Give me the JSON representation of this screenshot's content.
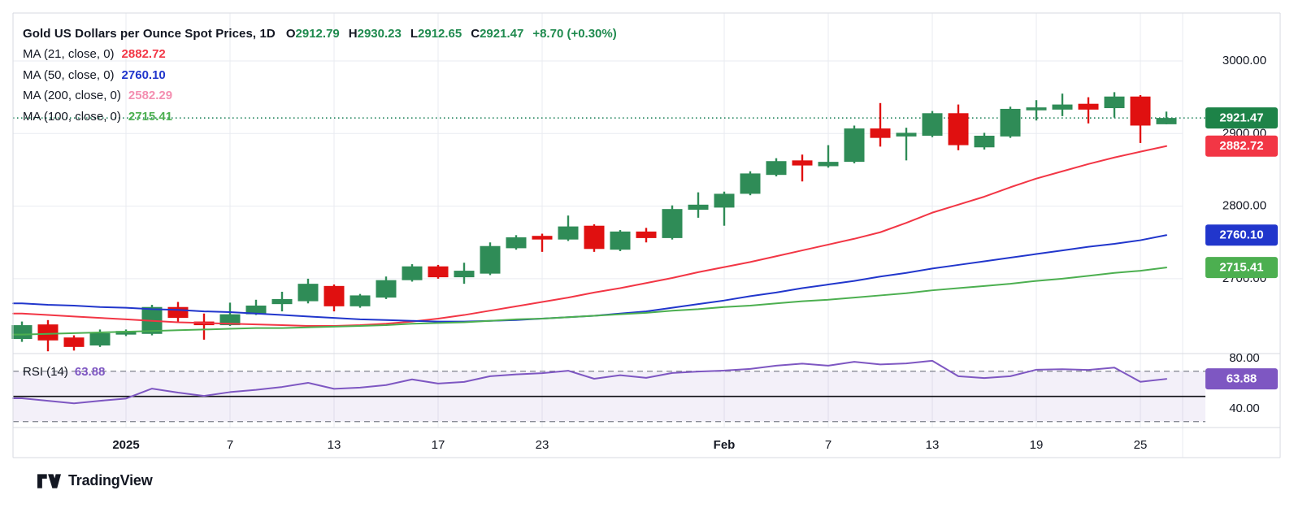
{
  "header": {
    "title": "Gold US Dollars per Ounce Spot Prices, 1D",
    "ohlc": [
      {
        "label": "O",
        "value": "2912.79"
      },
      {
        "label": "H",
        "value": "2930.23"
      },
      {
        "label": "L",
        "value": "2912.65"
      },
      {
        "label": "C",
        "value": "2921.47"
      }
    ],
    "change": "+8.70 (+0.30%)",
    "ohlc_value_color": "#1f8a4e"
  },
  "legend": {
    "ma": [
      {
        "label": "MA (21, close, 0)",
        "value": "2882.72",
        "color": "#f23645"
      },
      {
        "label": "MA (50, close, 0)",
        "value": "2760.10",
        "color": "#2136cc"
      },
      {
        "label": "MA (200, close, 0)",
        "value": "2582.29",
        "color": "#f48fb1"
      },
      {
        "label": "MA (100, close, 0)",
        "value": "2715.41",
        "color": "#4caf50"
      }
    ]
  },
  "rsi_label": {
    "label": "RSI (14)",
    "value": "63.88",
    "color": "#7e57c2"
  },
  "footer": {
    "brand": "TradingView"
  },
  "chart_data": {
    "type": "candlestick",
    "symbol": "Gold US Dollars per Ounce Spot Prices",
    "interval": "1D",
    "ohlc_current": {
      "open": 2912.79,
      "high": 2930.23,
      "low": 2912.65,
      "close": 2921.47,
      "change": "+8.70",
      "change_pct": "+0.30%"
    },
    "colors": {
      "up": "#2f8c57",
      "down": "#e01010",
      "close_badge": "#1d8348",
      "dotted_close": "#0d7a4d",
      "ma21": "#f23645",
      "ma50": "#2136cc",
      "ma100": "#4caf50",
      "rsi": "#7e57c2",
      "rsi_band_fill": "rgba(126,87,194,0.09)",
      "band_dash": "#8a8d97",
      "rsi_midline": "#0c0d12",
      "grid": "#e9ebf1",
      "border": "#d7dae0",
      "axis_text": "#131722"
    },
    "price_axis": {
      "gridline_values": [
        3000,
        2900,
        2800,
        2700
      ],
      "ticks": [
        {
          "text": "3000.00",
          "value": 3000
        },
        {
          "text": "2900.00",
          "value": 2900
        },
        {
          "text": "2800.00",
          "value": 2800
        },
        {
          "text": "2700.00",
          "value": 2700
        }
      ],
      "badges": [
        {
          "text": "2921.47",
          "value": 2921.47,
          "color": "#1d8348"
        },
        {
          "text": "2882.72",
          "value": 2882.72,
          "color": "#f23645"
        },
        {
          "text": "2760.10",
          "value": 2760.1,
          "color": "#2136cc"
        },
        {
          "text": "2715.41",
          "value": 2715.41,
          "color": "#4caf50"
        }
      ]
    },
    "rsi_axis": {
      "ticks": [
        {
          "text": "80.00",
          "value": 80
        },
        {
          "text": "40.00",
          "value": 40
        }
      ],
      "badge": {
        "text": "63.88",
        "value": 63.88,
        "color": "#7e57c2"
      },
      "bands": [
        70,
        30
      ],
      "midline": 50
    },
    "time_axis": {
      "ticks": [
        {
          "i": 4,
          "label": "2025",
          "bold": true
        },
        {
          "i": 8,
          "label": "7"
        },
        {
          "i": 12,
          "label": "13"
        },
        {
          "i": 16,
          "label": "17"
        },
        {
          "i": 20,
          "label": "23"
        },
        {
          "i": 27,
          "label": "Feb",
          "bold": true
        },
        {
          "i": 31,
          "label": "7"
        },
        {
          "i": 35,
          "label": "13"
        },
        {
          "i": 39,
          "label": "19"
        },
        {
          "i": 43,
          "label": "25"
        }
      ]
    },
    "candles": [
      [
        2617,
        2641,
        2613,
        2636
      ],
      [
        2637,
        2643,
        2600,
        2615
      ],
      [
        2619,
        2622,
        2601,
        2606
      ],
      [
        2608,
        2630,
        2606,
        2625
      ],
      [
        2623,
        2630,
        2621,
        2628
      ],
      [
        2624,
        2664,
        2622,
        2661
      ],
      [
        2661,
        2668,
        2640,
        2646
      ],
      [
        2641,
        2652,
        2616,
        2636
      ],
      [
        2636,
        2667,
        2635,
        2651
      ],
      [
        2651,
        2671,
        2650,
        2663
      ],
      [
        2665,
        2682,
        2655,
        2672
      ],
      [
        2669,
        2700,
        2666,
        2693
      ],
      [
        2690,
        2692,
        2655,
        2662
      ],
      [
        2662,
        2679,
        2660,
        2677
      ],
      [
        2674,
        2703,
        2672,
        2698
      ],
      [
        2698,
        2720,
        2696,
        2717
      ],
      [
        2717,
        2719,
        2700,
        2702
      ],
      [
        2702,
        2722,
        2693,
        2711
      ],
      [
        2707,
        2750,
        2705,
        2745
      ],
      [
        2742,
        2760,
        2740,
        2757
      ],
      [
        2759,
        2762,
        2737,
        2754
      ],
      [
        2754,
        2787,
        2752,
        2772
      ],
      [
        2773,
        2775,
        2737,
        2741
      ],
      [
        2740,
        2767,
        2738,
        2765
      ],
      [
        2765,
        2770,
        2750,
        2756
      ],
      [
        2756,
        2801,
        2754,
        2796
      ],
      [
        2795,
        2819,
        2784,
        2802
      ],
      [
        2798,
        2820,
        2773,
        2817
      ],
      [
        2817,
        2848,
        2815,
        2845
      ],
      [
        2843,
        2866,
        2841,
        2862
      ],
      [
        2863,
        2871,
        2834,
        2856
      ],
      [
        2855,
        2884,
        2853,
        2861
      ],
      [
        2861,
        2911,
        2859,
        2907
      ],
      [
        2907,
        2942,
        2882,
        2894
      ],
      [
        2896,
        2908,
        2863,
        2901
      ],
      [
        2897,
        2931,
        2895,
        2928
      ],
      [
        2928,
        2940,
        2877,
        2884
      ],
      [
        2881,
        2901,
        2878,
        2897
      ],
      [
        2896,
        2937,
        2894,
        2934
      ],
      [
        2932,
        2946,
        2918,
        2936
      ],
      [
        2933,
        2955,
        2924,
        2940
      ],
      [
        2941,
        2950,
        2914,
        2933
      ],
      [
        2935,
        2957,
        2922,
        2951
      ],
      [
        2951,
        2953,
        2887,
        2911
      ],
      [
        2912.79,
        2930.23,
        2912.65,
        2921.47
      ]
    ],
    "series": [
      {
        "name": "MA (21, close, 0)",
        "period": 21,
        "color": "#f23645",
        "last": 2882.72,
        "plotted": true,
        "values": [
          2652,
          2650,
          2648,
          2646,
          2644,
          2642,
          2640,
          2639,
          2638,
          2637,
          2636,
          2635,
          2635,
          2636,
          2638,
          2641,
          2645,
          2650,
          2656,
          2662,
          2668,
          2674,
          2681,
          2687,
          2694,
          2701,
          2709,
          2716,
          2723,
          2731,
          2739,
          2747,
          2755,
          2764,
          2777,
          2791,
          2802,
          2813,
          2826,
          2838,
          2848,
          2858,
          2867,
          2875,
          2882.72
        ]
      },
      {
        "name": "MA (50, close, 0)",
        "period": 50,
        "color": "#2136cc",
        "last": 2760.1,
        "plotted": true,
        "values": [
          2666,
          2664,
          2663,
          2661,
          2660,
          2658,
          2657,
          2655,
          2654,
          2652,
          2650,
          2648,
          2646,
          2644,
          2643,
          2642,
          2641,
          2641,
          2642,
          2643,
          2645,
          2647,
          2649,
          2652,
          2655,
          2660,
          2665,
          2670,
          2676,
          2681,
          2687,
          2692,
          2697,
          2703,
          2708,
          2714,
          2719,
          2724,
          2729,
          2734,
          2739,
          2744,
          2748,
          2753,
          2760.1
        ]
      },
      {
        "name": "MA (200, close, 0)",
        "period": 200,
        "color": "#f48fb1",
        "last": 2582.29,
        "plotted": false,
        "values": []
      },
      {
        "name": "MA (100, close, 0)",
        "period": 100,
        "color": "#4caf50",
        "last": 2715.41,
        "plotted": true,
        "values": [
          2623,
          2624,
          2625,
          2626,
          2627,
          2628,
          2629,
          2630,
          2631,
          2632,
          2632,
          2633,
          2634,
          2635,
          2636,
          2638,
          2639,
          2640,
          2642,
          2644,
          2645,
          2647,
          2649,
          2651,
          2653,
          2656,
          2658,
          2661,
          2663,
          2666,
          2669,
          2671,
          2674,
          2677,
          2680,
          2684,
          2687,
          2690,
          2693,
          2697,
          2700,
          2704,
          2708,
          2711,
          2715.41
        ]
      }
    ],
    "rsi": {
      "name": "RSI (14)",
      "period": 14,
      "last": 63.88,
      "values": [
        48.5,
        46.5,
        44.5,
        46.5,
        48.3,
        56.2,
        53.0,
        50.4,
        53.4,
        55.2,
        57.5,
        60.8,
        56.0,
        57.0,
        59.0,
        63.5,
        60.2,
        61.5,
        66.0,
        67.5,
        68.4,
        70.4,
        64.0,
        66.8,
        64.7,
        68.6,
        69.7,
        70.5,
        71.8,
        74.4,
        76.0,
        74.4,
        77.5,
        75.4,
        76.2,
        78.3,
        66.0,
        64.6,
        66.0,
        71.2,
        71.6,
        71.0,
        72.9,
        61.6,
        63.88
      ]
    }
  }
}
